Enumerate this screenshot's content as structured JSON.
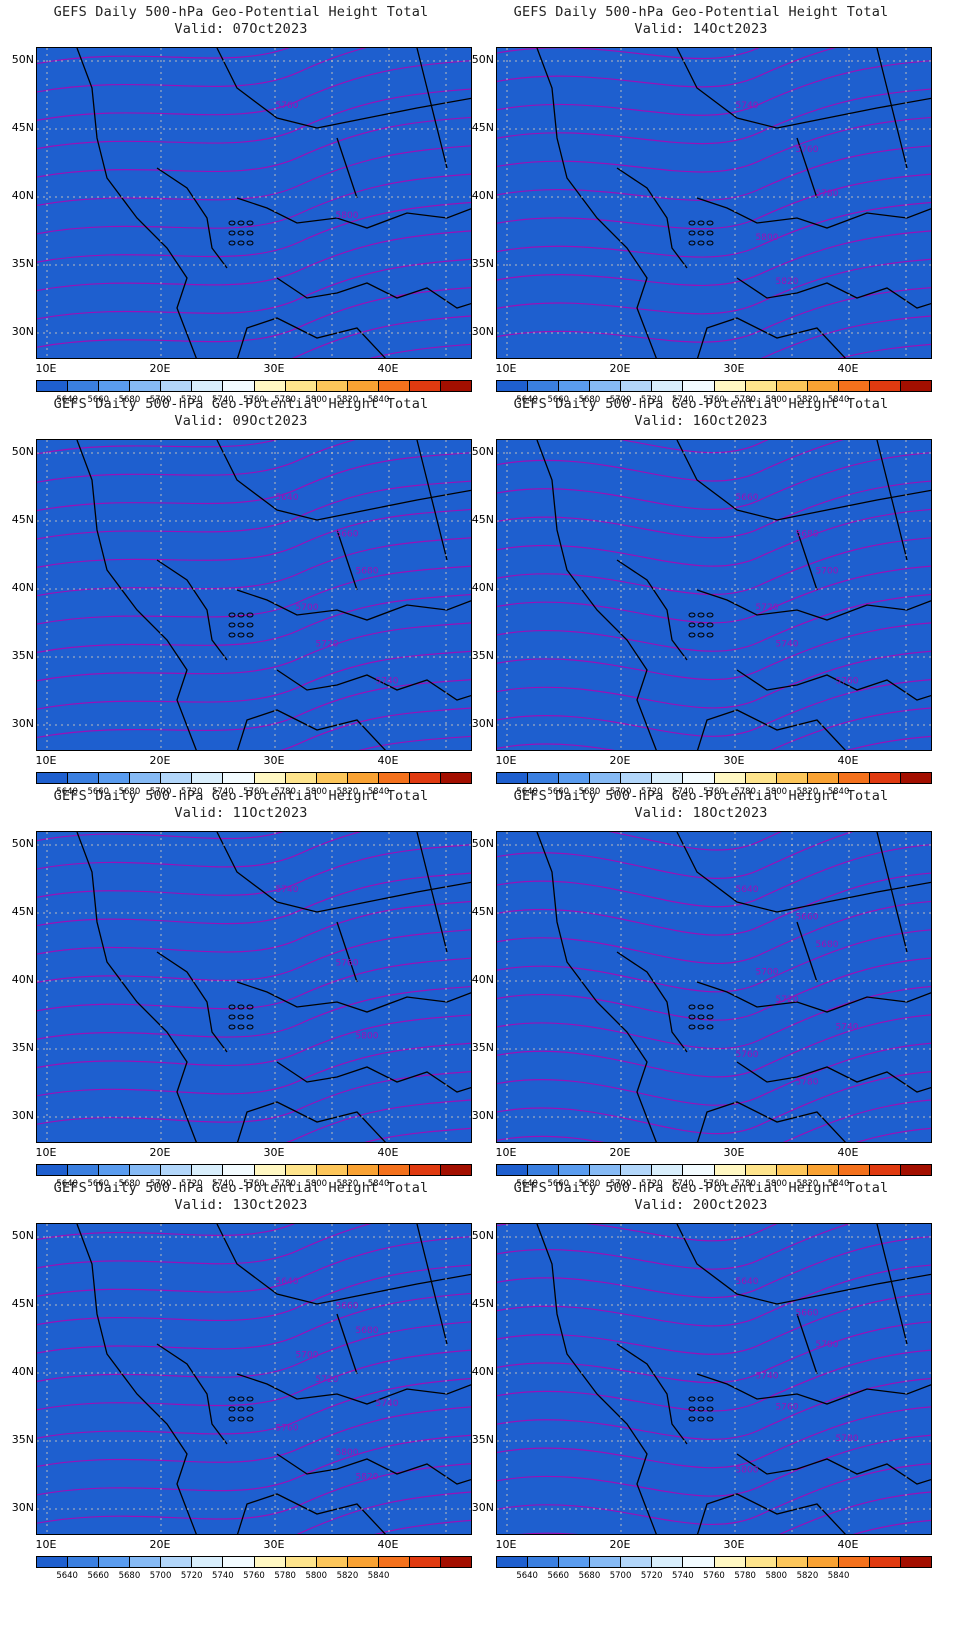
{
  "figure_title": "GEFS Daily 500-hPa Geo-Potential Height Total",
  "valid_prefix": "Valid:",
  "lat_labels": [
    "50N",
    "45N",
    "40N",
    "35N",
    "30N"
  ],
  "lon_labels": [
    "10E",
    "20E",
    "30E",
    "40E"
  ],
  "colorbar": {
    "colors": [
      "#1e5fcf",
      "#3a7fe0",
      "#5a9cef",
      "#86baf5",
      "#b2d6fa",
      "#d8eefc",
      "#f2fbff",
      "#fff7c2",
      "#fee48c",
      "#fdc65a",
      "#f9a233",
      "#f4711c",
      "#e03a10",
      "#a30f00"
    ],
    "labels": [
      "5640",
      "5660",
      "5680",
      "5700",
      "5720",
      "5740",
      "5760",
      "5780",
      "5800",
      "5820",
      "5840"
    ]
  },
  "contour_color": "#9a10b8",
  "panels": [
    {
      "valid": "07Oct2023",
      "labels": [
        "5760",
        "5800"
      ],
      "trough": 0.25,
      "south": 0.85
    },
    {
      "valid": "14Oct2023",
      "labels": [
        "5740",
        "5760",
        "5780",
        "5800",
        "5820"
      ],
      "trough": 0.35,
      "south": 0.55
    },
    {
      "valid": "09Oct2023",
      "labels": [
        "5640",
        "5660",
        "5680",
        "5700",
        "5720",
        "5740"
      ],
      "trough": 0.15,
      "south": 0.8
    },
    {
      "valid": "16Oct2023",
      "labels": [
        "5660",
        "5680",
        "5700",
        "5720",
        "5740",
        "5760"
      ],
      "trough": 0.45,
      "south": 0.3
    },
    {
      "valid": "11Oct2023",
      "labels": [
        "5740",
        "5760",
        "5800"
      ],
      "trough": 0.2,
      "south": 0.65
    },
    {
      "valid": "18Oct2023",
      "labels": [
        "5640",
        "5660",
        "5680",
        "5700",
        "5720",
        "5740",
        "5760",
        "5780"
      ],
      "trough": 0.6,
      "south": 0.3
    },
    {
      "valid": "13Oct2023",
      "labels": [
        "5640",
        "5660",
        "5680",
        "5700",
        "5720",
        "5740",
        "5760",
        "5800",
        "5820"
      ],
      "trough": 0.3,
      "south": 0.85
    },
    {
      "valid": "20Oct2023",
      "labels": [
        "5640",
        "5660",
        "5700",
        "5740",
        "5760",
        "5780",
        "5800"
      ],
      "trough": 0.55,
      "south": 0.45
    }
  ]
}
